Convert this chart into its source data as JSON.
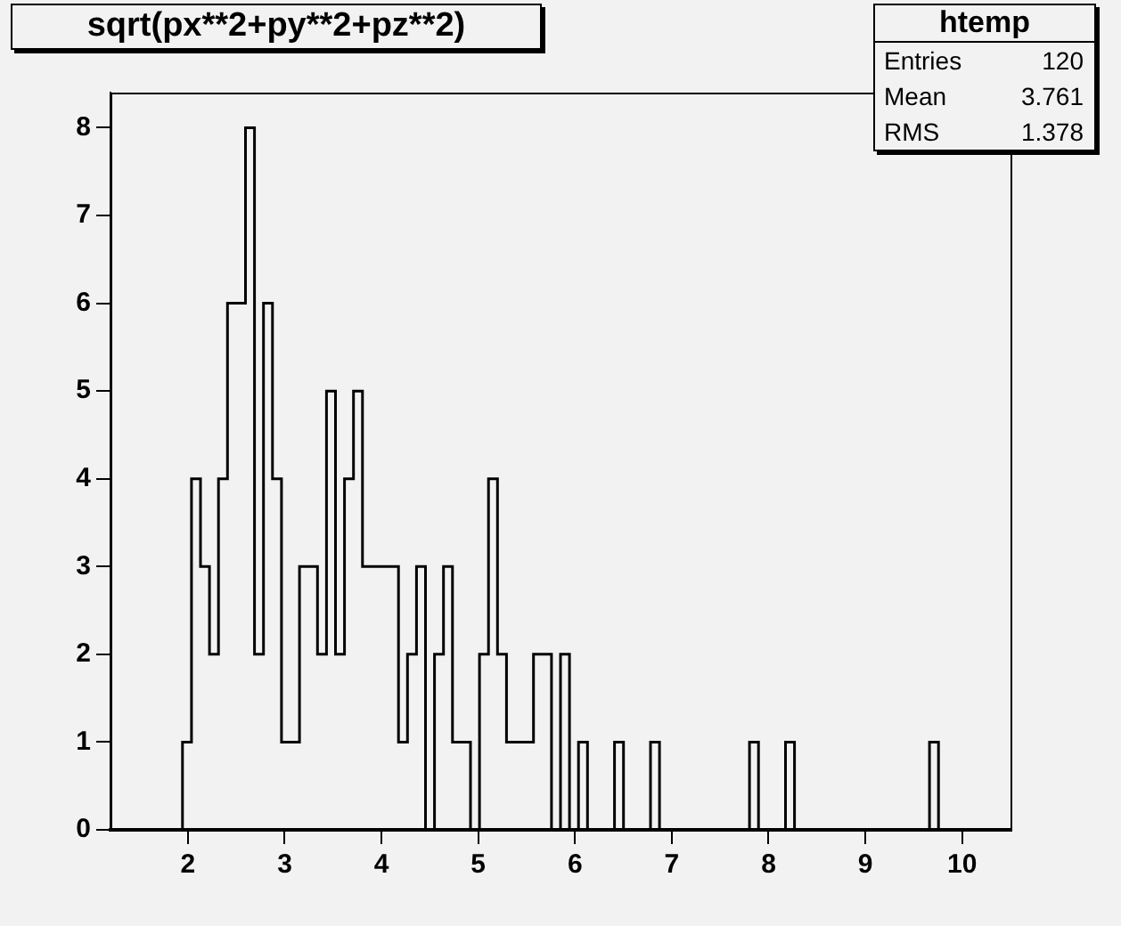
{
  "chart_data": {
    "type": "histogram",
    "title": "sqrt(px**2+py**2+pz**2)",
    "annotations": [
      "htemp",
      "Entries",
      "120",
      "Mean",
      "3.761",
      "RMS",
      "1.378"
    ],
    "bins": [
      1.2,
      1.293,
      1.386,
      1.479,
      1.572,
      1.665,
      1.758,
      1.851,
      1.944,
      2.037,
      2.13,
      2.223,
      2.316,
      2.409,
      2.502,
      2.595,
      2.688,
      2.781,
      2.874,
      2.967,
      3.06,
      3.153,
      3.246,
      3.339,
      3.432,
      3.525,
      3.618,
      3.711,
      3.804,
      3.897,
      3.99,
      4.083,
      4.176,
      4.269,
      4.362,
      4.455,
      4.548,
      4.641,
      4.734,
      4.827,
      4.92,
      5.013,
      5.106,
      5.199,
      5.292,
      5.385,
      5.478,
      5.571,
      5.664,
      5.757,
      5.85,
      5.943,
      6.036,
      6.129,
      6.222,
      6.315,
      6.408,
      6.501,
      6.594,
      6.687,
      6.78,
      6.873,
      6.966,
      7.059,
      7.152,
      7.245,
      7.338,
      7.431,
      7.524,
      7.617,
      7.71,
      7.803,
      7.896,
      7.989,
      8.082,
      8.175,
      8.268,
      8.361,
      8.454,
      8.547,
      8.64,
      8.733,
      8.826,
      8.919,
      9.012,
      9.105,
      9.198,
      9.291,
      9.384,
      9.477,
      9.57,
      9.663,
      9.756,
      9.849,
      9.942,
      10.035,
      10.128,
      10.221,
      10.314,
      10.407,
      10.5
    ],
    "values": [
      0,
      0,
      0,
      0,
      0,
      0,
      0,
      0,
      1,
      4,
      3,
      2,
      4,
      6,
      6,
      8,
      2,
      6,
      4,
      1,
      1,
      3,
      3,
      2,
      5,
      2,
      4,
      5,
      3,
      3,
      3,
      3,
      1,
      2,
      3,
      0,
      2,
      3,
      1,
      1,
      0,
      2,
      4,
      2,
      1,
      1,
      1,
      2,
      2,
      0,
      2,
      0,
      1,
      0,
      0,
      0,
      1,
      0,
      0,
      0,
      1,
      0,
      0,
      0,
      0,
      0,
      0,
      0,
      0,
      0,
      0,
      1,
      0,
      0,
      0,
      1,
      0,
      0,
      0,
      0,
      0,
      0,
      0,
      0,
      0,
      0,
      0,
      0,
      0,
      0,
      0,
      1,
      0,
      0,
      0,
      0,
      0,
      0,
      0,
      0
    ],
    "color": "#000000",
    "xlim": [
      1.2,
      10.5
    ],
    "xticks": [
      2,
      3,
      4,
      5,
      6,
      7,
      8,
      9,
      10
    ],
    "ylim": [
      0,
      8.4
    ],
    "yticks": [
      0,
      1,
      2,
      3,
      4,
      5,
      6,
      7,
      8
    ],
    "grid": false,
    "legend": false
  }
}
